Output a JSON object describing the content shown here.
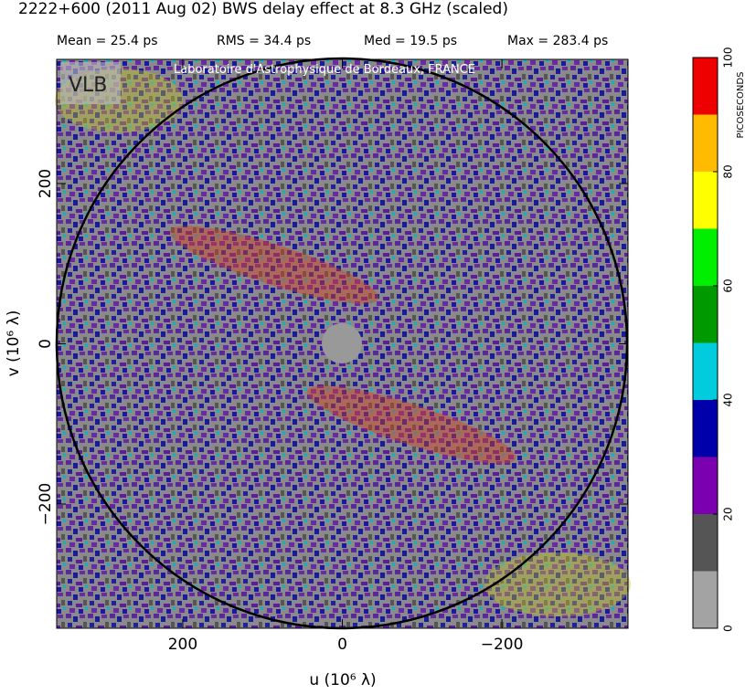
{
  "chart_data": {
    "type": "heatmap",
    "title": "2222+600  (2011 Aug 02)   BWS delay effect at  8.3 GHz (scaled)",
    "stats": [
      "Mean =   25.4 ps",
      "RMS =   34.4 ps",
      "Med =   19.5 ps",
      "Max =  283.4 ps"
    ],
    "annotation": "Laboratoire d'Astrophysique de Bordeaux, FRANCE",
    "xlabel": "u  (10⁶ λ)",
    "ylabel": "v  (10⁶ λ)",
    "xlim": [
      358,
      -358
    ],
    "ylim": [
      -355,
      355
    ],
    "xticks": [
      200,
      0,
      {
        "value": -200,
        "label": "−200"
      }
    ],
    "yticks": [
      {
        "value": -200,
        "label": "−200"
      },
      0,
      200
    ],
    "colorbar": {
      "label": "PICOSECONDS",
      "zlim": [
        0,
        100
      ],
      "ticks": [
        0,
        20,
        40,
        60,
        80,
        100
      ],
      "colors": [
        "#a3a3a3",
        "#555555",
        "#7a00b0",
        "#0000aa",
        "#00ccdd",
        "#009900",
        "#00ee00",
        "#ffff00",
        "#ffbb00",
        "#ee0000"
      ]
    }
  }
}
